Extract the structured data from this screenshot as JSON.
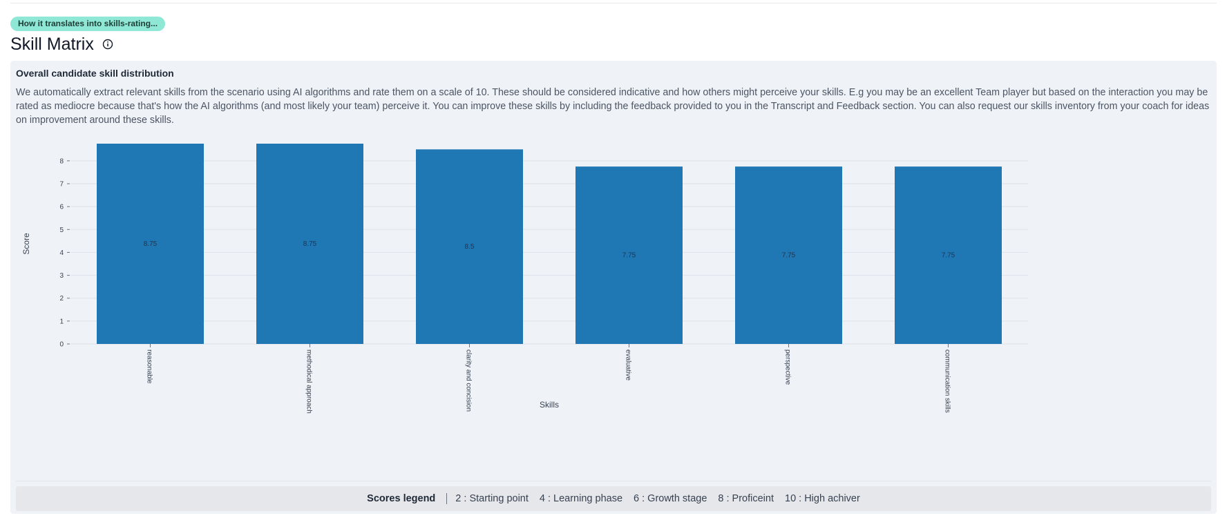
{
  "header": {
    "pill_label": "How it translates into skills-rating...",
    "title": "Skill Matrix",
    "info_icon": "info-circle-icon"
  },
  "panel": {
    "heading": "Overall candidate skill distribution",
    "description": "We automatically extract relevant skills from the scenario using AI algorithms and rate them on a scale of 10. These should be considered indicative and how others might perceive your skills. E.g you may be an excellent Team player but based on the interaction you may be rated as mediocre because that's how the AI algorithms (and most likely your team) perceive it. You can improve these skills by including the feedback provided to you in the Transcript and Feedback section. You can also request our skills inventory from your coach for ideas on improvement around these skills."
  },
  "chart_data": {
    "type": "bar",
    "categories": [
      "reasonable",
      "methodical approach",
      "clarity and concision",
      "evaluative",
      "perspective",
      "communication skills"
    ],
    "values": [
      8.75,
      8.75,
      8.5,
      7.75,
      7.75,
      7.75
    ],
    "data_labels": [
      "8.75",
      "8.75",
      "8.5",
      "7.75",
      "7.75",
      "7.75"
    ],
    "xlabel": "Skills",
    "ylabel": "Score",
    "ylim": [
      0,
      8.75
    ],
    "yticks": [
      "0",
      "1",
      "2",
      "3",
      "4",
      "5",
      "6",
      "7",
      "8"
    ],
    "grid": true,
    "bar_color": "#1f77b4",
    "data_label_color": "#1f3550"
  },
  "legend": {
    "title": "Scores legend",
    "items": [
      "2 : Starting point",
      "4 : Learning phase",
      "6 : Growth stage",
      "8 : Proficeint",
      "10 : High achiver"
    ]
  }
}
